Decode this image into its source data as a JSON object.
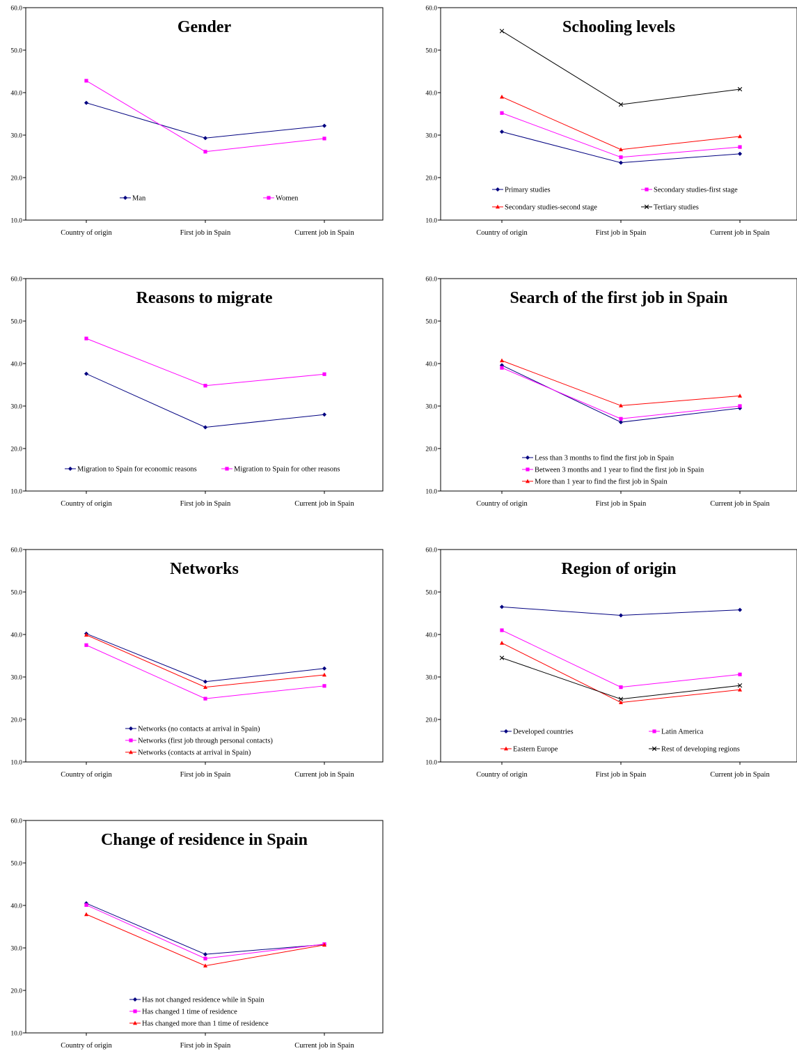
{
  "chart_data": [
    {
      "type": "line",
      "title": "Gender",
      "categories": [
        "Country of origin",
        "First job in Spain",
        "Current job in Spain"
      ],
      "ylim": [
        10.0,
        60.0
      ],
      "yticks": [
        "10.0",
        "20.0",
        "30.0",
        "40.0",
        "50.0",
        "60.0"
      ],
      "grid": false,
      "legend_placement": "bottom-inside",
      "series": [
        {
          "name": "Man",
          "values": [
            37.6,
            29.3,
            32.2
          ],
          "color": "#000080",
          "marker": "diamond"
        },
        {
          "name": "Women",
          "values": [
            42.8,
            26.1,
            29.2
          ],
          "color": "#FF00FF",
          "marker": "square"
        }
      ]
    },
    {
      "type": "line",
      "title": "Schooling levels",
      "categories": [
        "Country of origin",
        "First job in Spain",
        "Current job in Spain"
      ],
      "ylim": [
        10.0,
        60.0
      ],
      "yticks": [
        "10.0",
        "20.0",
        "30.0",
        "40.0",
        "50.0",
        "60.0"
      ],
      "grid": false,
      "legend_placement": "bottom-inside",
      "series": [
        {
          "name": "Primary studies",
          "values": [
            30.8,
            23.5,
            25.6
          ],
          "color": "#000080",
          "marker": "diamond"
        },
        {
          "name": "Secondary studies-first stage",
          "values": [
            35.2,
            24.8,
            27.2
          ],
          "color": "#FF00FF",
          "marker": "square"
        },
        {
          "name": "Secondary studies-second stage",
          "values": [
            39.0,
            26.6,
            29.7
          ],
          "color": "#FF0000",
          "marker": "triangle"
        },
        {
          "name": "Tertiary studies",
          "values": [
            54.5,
            37.2,
            40.8
          ],
          "color": "#000000",
          "marker": "x"
        }
      ]
    },
    {
      "type": "line",
      "title": "Reasons to migrate",
      "categories": [
        "Country of origin",
        "First job in Spain",
        "Current job in Spain"
      ],
      "ylim": [
        10.0,
        60.0
      ],
      "yticks": [
        "10.0",
        "20.0",
        "30.0",
        "40.0",
        "50.0",
        "60.0"
      ],
      "grid": false,
      "legend_placement": "bottom-inside",
      "series": [
        {
          "name": "Migration to Spain for economic reasons",
          "values": [
            37.6,
            25.0,
            28.0
          ],
          "color": "#000080",
          "marker": "diamond"
        },
        {
          "name": "Migration to Spain for other reasons",
          "values": [
            45.9,
            34.8,
            37.5
          ],
          "color": "#FF00FF",
          "marker": "square"
        }
      ]
    },
    {
      "type": "line",
      "title": "Search of the first job in Spain",
      "categories": [
        "Country of origin",
        "First job in Spain",
        "Current job in Spain"
      ],
      "ylim": [
        10.0,
        60.0
      ],
      "yticks": [
        "10.0",
        "20.0",
        "30.0",
        "40.0",
        "50.0",
        "60.0"
      ],
      "grid": false,
      "legend_placement": "bottom-inside",
      "series": [
        {
          "name": "Less than 3 months to find the first job in Spain",
          "values": [
            39.6,
            26.2,
            29.5
          ],
          "color": "#000080",
          "marker": "diamond"
        },
        {
          "name": "Between 3 months and 1 year to find the first job in Spain",
          "values": [
            39.0,
            27.0,
            30.0
          ],
          "color": "#FF00FF",
          "marker": "square"
        },
        {
          "name": "More than 1 year to find the first job in Spain",
          "values": [
            40.7,
            30.1,
            32.4
          ],
          "color": "#FF0000",
          "marker": "triangle"
        }
      ]
    },
    {
      "type": "line",
      "title": "Networks",
      "categories": [
        "Country of origin",
        "First job in Spain",
        "Current job in Spain"
      ],
      "ylim": [
        10.0,
        60.0
      ],
      "yticks": [
        "10.0",
        "20.0",
        "30.0",
        "40.0",
        "50.0",
        "60.0"
      ],
      "grid": false,
      "legend_placement": "bottom-inside",
      "series": [
        {
          "name": "Networks (no contacts at arrival in Spain)",
          "values": [
            40.2,
            28.9,
            32.0
          ],
          "color": "#000080",
          "marker": "diamond"
        },
        {
          "name": "Networks (first job through personal contacts)",
          "values": [
            37.5,
            24.9,
            27.9
          ],
          "color": "#FF00FF",
          "marker": "square"
        },
        {
          "name": "Networks (contacts at arrival in Spain)",
          "values": [
            39.9,
            27.6,
            30.5
          ],
          "color": "#FF0000",
          "marker": "triangle"
        }
      ]
    },
    {
      "type": "line",
      "title": "Region of origin",
      "categories": [
        "Country of origin",
        "First job in Spain",
        "Current job in Spain"
      ],
      "ylim": [
        10.0,
        60.0
      ],
      "yticks": [
        "10.0",
        "20.0",
        "30.0",
        "40.0",
        "50.0",
        "60.0"
      ],
      "grid": false,
      "legend_placement": "bottom-inside",
      "series": [
        {
          "name": "Developed countries",
          "values": [
            46.5,
            44.5,
            45.8
          ],
          "color": "#000080",
          "marker": "diamond"
        },
        {
          "name": "Latin America",
          "values": [
            41.0,
            27.6,
            30.6
          ],
          "color": "#FF00FF",
          "marker": "square"
        },
        {
          "name": "Eastern Europe",
          "values": [
            38.0,
            24.0,
            27.0
          ],
          "color": "#FF0000",
          "marker": "triangle"
        },
        {
          "name": "Rest of developing regions",
          "values": [
            34.5,
            24.8,
            28.0
          ],
          "color": "#000000",
          "marker": "x"
        }
      ]
    },
    {
      "type": "line",
      "title": "Change of residence in Spain",
      "categories": [
        "Country of origin",
        "First job in Spain",
        "Current job in Spain"
      ],
      "ylim": [
        10.0,
        60.0
      ],
      "yticks": [
        "10.0",
        "20.0",
        "30.0",
        "40.0",
        "50.0",
        "60.0"
      ],
      "grid": false,
      "legend_placement": "bottom-inside",
      "series": [
        {
          "name": "Has not changed residence while in Spain",
          "values": [
            40.5,
            28.5,
            30.8
          ],
          "color": "#000080",
          "marker": "diamond"
        },
        {
          "name": "Has changed 1 time of residence",
          "values": [
            40.1,
            27.5,
            30.9
          ],
          "color": "#FF00FF",
          "marker": "square"
        },
        {
          "name": "Has changed more than 1 time of residence",
          "values": [
            37.9,
            25.8,
            30.7
          ],
          "color": "#FF0000",
          "marker": "triangle"
        }
      ]
    }
  ]
}
